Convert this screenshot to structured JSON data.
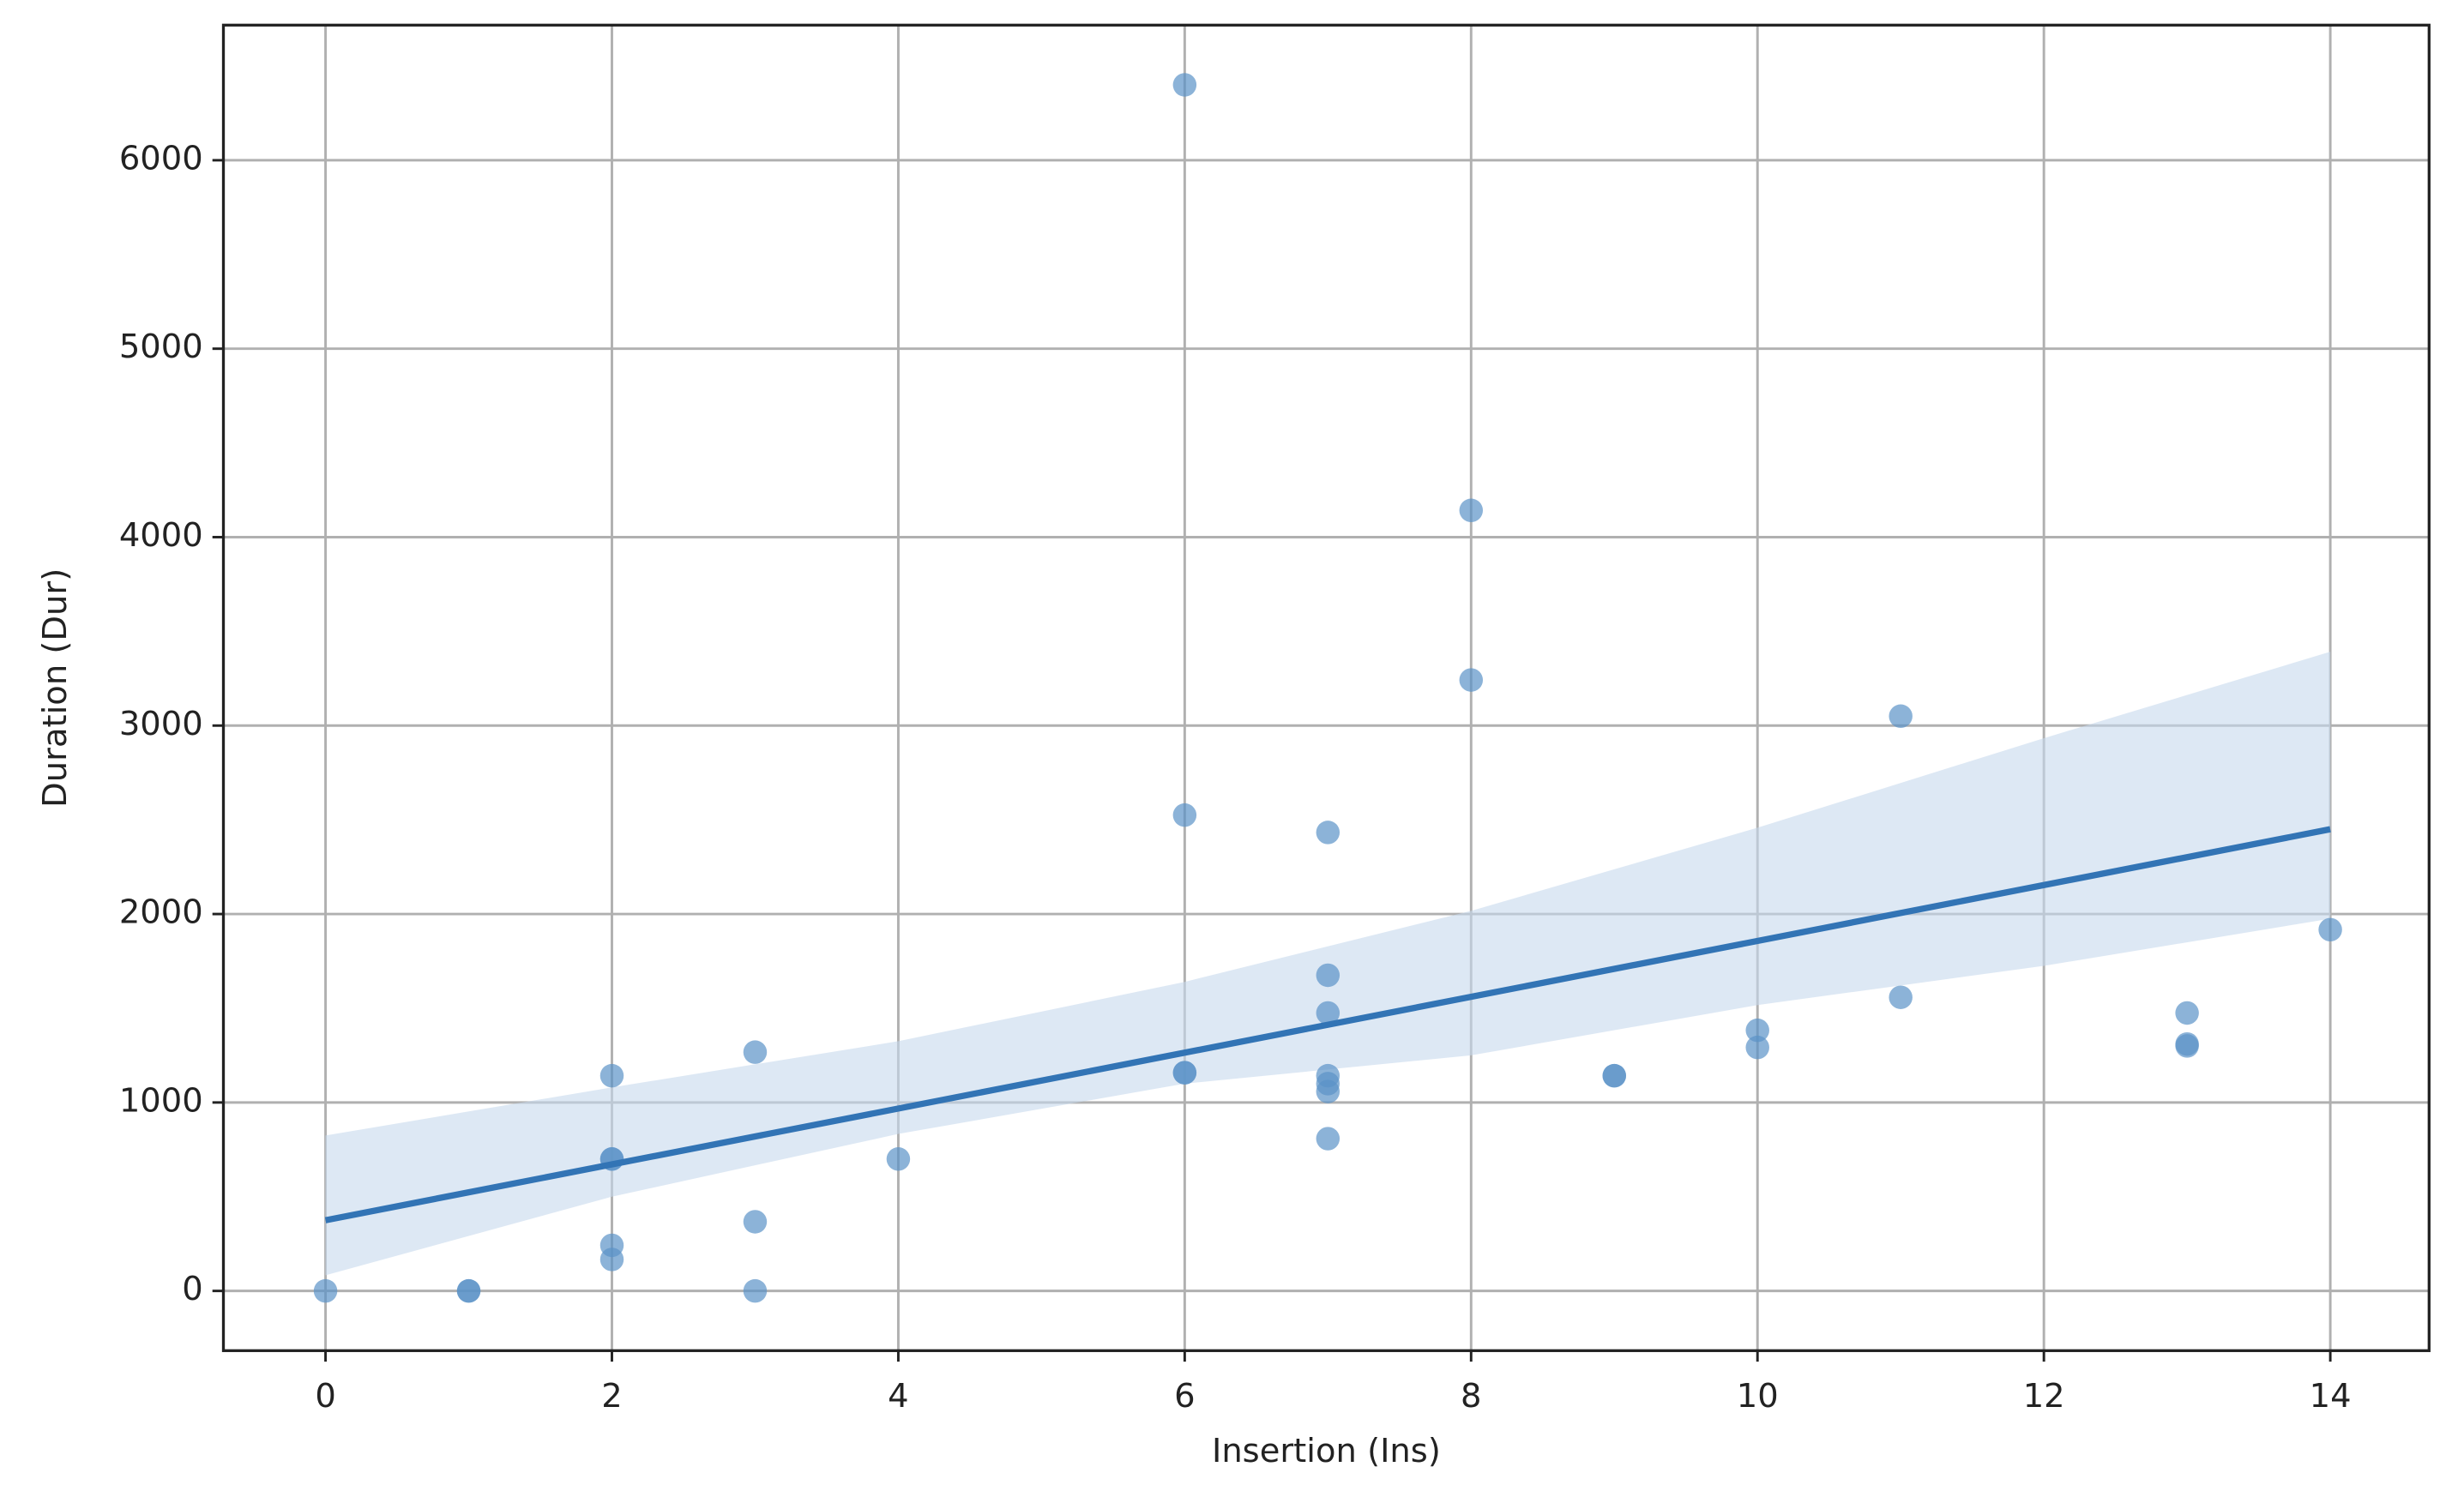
{
  "chart_data": {
    "type": "scatter",
    "x_label": "Insertion (Ins)",
    "y_label": "Duration (Dur)",
    "x": [
      0,
      1,
      1,
      2,
      2,
      2,
      2,
      2,
      3,
      3,
      3,
      4,
      6,
      6,
      6,
      6,
      7,
      7,
      7,
      7,
      7,
      7,
      7,
      8,
      8,
      9,
      9,
      10,
      10,
      11,
      11,
      13,
      13,
      13,
      14
    ],
    "values": [
      0,
      0,
      0,
      1142,
      700,
      700,
      242,
      167,
      1267,
      367,
      0,
      700,
      6400,
      2525,
      1158,
      1158,
      2433,
      1675,
      1475,
      1142,
      1100,
      1058,
      808,
      4142,
      3242,
      1142,
      1142,
      1383,
      1292,
      3050,
      1558,
      1475,
      1310,
      1300,
      1917
    ],
    "color": "#5b93c7",
    "fit": {
      "x": [
        0,
        14
      ],
      "y": [
        375,
        2450
      ],
      "color": "#3274b5"
    },
    "band": {
      "x": [
        0,
        2,
        4,
        6,
        8,
        10,
        12,
        14
      ],
      "upper": [
        825,
        1080,
        1325,
        1640,
        2017,
        2458,
        2933,
        3392
      ],
      "lower": [
        83,
        500,
        833,
        1100,
        1250,
        1517,
        1725,
        1975
      ],
      "color": "#c6d8ec"
    },
    "xlim": [
      -0.713,
      14.69
    ],
    "ylim": [
      -317,
      6717
    ],
    "xticks": [
      0,
      2,
      4,
      6,
      8,
      10,
      12,
      14
    ],
    "yticks": [
      0,
      1000,
      2000,
      3000,
      4000,
      5000,
      6000
    ],
    "grid": true
  }
}
